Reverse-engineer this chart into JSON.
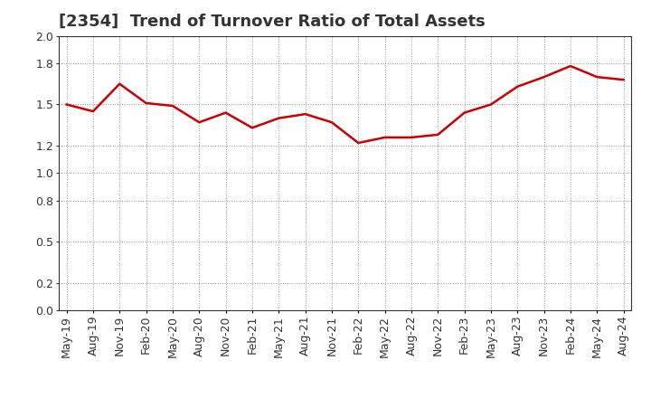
{
  "title": "[2354]  Trend of Turnover Ratio of Total Assets",
  "x_labels": [
    "May-19",
    "Aug-19",
    "Nov-19",
    "Feb-20",
    "May-20",
    "Aug-20",
    "Nov-20",
    "Feb-21",
    "May-21",
    "Aug-21",
    "Nov-21",
    "Feb-22",
    "May-22",
    "Aug-22",
    "Nov-22",
    "Feb-23",
    "May-23",
    "Aug-23",
    "Nov-23",
    "Feb-24",
    "May-24",
    "Aug-24"
  ],
  "y_values": [
    1.5,
    1.45,
    1.65,
    1.51,
    1.49,
    1.37,
    1.44,
    1.33,
    1.4,
    1.43,
    1.37,
    1.22,
    1.26,
    1.26,
    1.28,
    1.44,
    1.5,
    1.63,
    1.7,
    1.78,
    1.7,
    1.68
  ],
  "line_color": "#cc0000",
  "line_width": 1.8,
  "ylim": [
    0.0,
    2.0
  ],
  "yticks": [
    0.0,
    0.2,
    0.5,
    0.8,
    1.0,
    1.2,
    1.5,
    1.8,
    2.0
  ],
  "grid_color": "#999999",
  "bg_color": "#ffffff",
  "title_fontsize": 13,
  "tick_fontsize": 9,
  "title_color": "#333333"
}
